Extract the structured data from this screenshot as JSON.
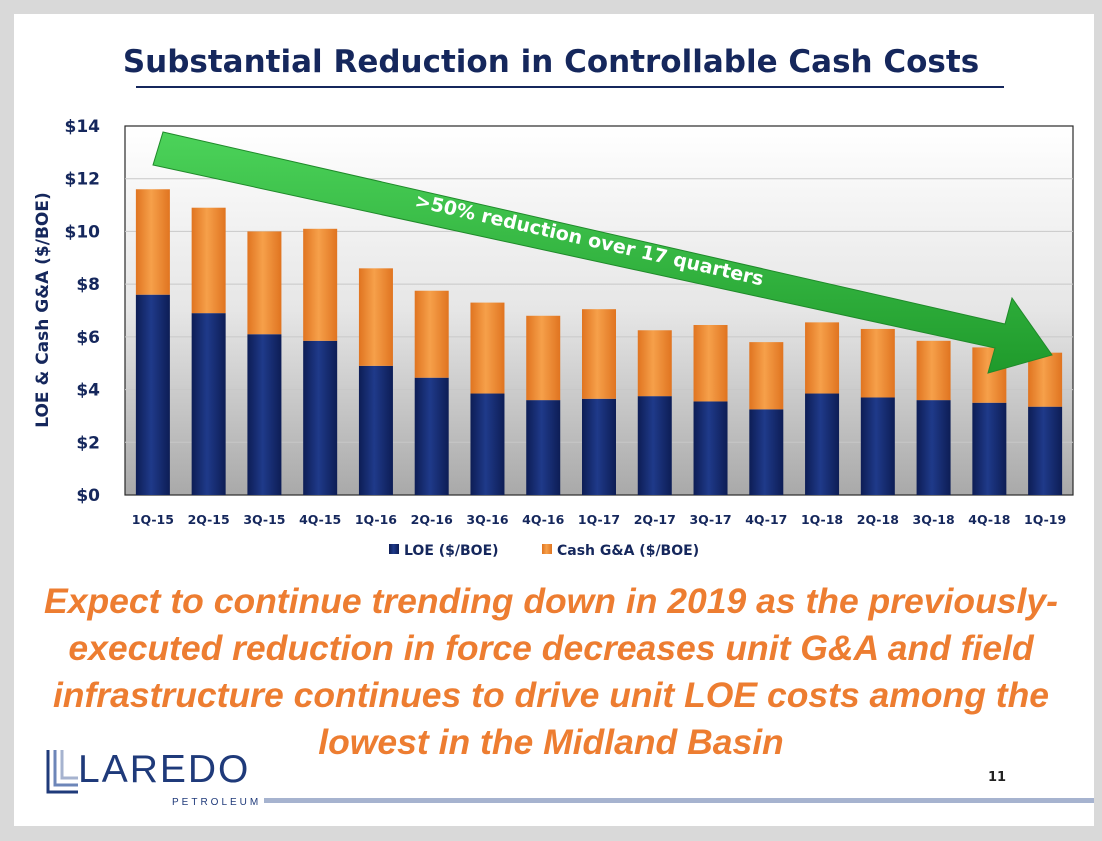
{
  "slide": {
    "title": "Substantial Reduction in Controllable Cash Costs",
    "caption_lines": [
      "Expect to continue trending down in 2019 as the previously-",
      "executed reduction in force decreases unit G&A and field",
      "infrastructure continues to drive unit LOE costs among the",
      "lowest in the Midland Basin"
    ],
    "page_number": "11",
    "logo": {
      "wordmark": "LAREDO",
      "sub": "PETROLEUM"
    }
  },
  "colors": {
    "loe": "#15296b",
    "ga": "#f08a2e",
    "arrow": "#2bbb3a",
    "text": "#15275c",
    "caption": "#ed7d31"
  },
  "chart_data": {
    "type": "bar",
    "stacked": true,
    "title": "",
    "xlabel": "",
    "ylabel": "LOE & Cash G&A ($/BOE)",
    "ylim": [
      0,
      14
    ],
    "yticks": [
      0,
      2,
      4,
      6,
      8,
      10,
      12,
      14
    ],
    "ytick_labels": [
      "$0",
      "$2",
      "$4",
      "$6",
      "$8",
      "$10",
      "$12",
      "$14"
    ],
    "categories": [
      "1Q-15",
      "2Q-15",
      "3Q-15",
      "4Q-15",
      "1Q-16",
      "2Q-16",
      "3Q-16",
      "4Q-16",
      "1Q-17",
      "2Q-17",
      "3Q-17",
      "4Q-17",
      "1Q-18",
      "2Q-18",
      "3Q-18",
      "4Q-18",
      "1Q-19"
    ],
    "series": [
      {
        "name": "LOE ($/BOE)",
        "values": [
          7.6,
          6.9,
          6.1,
          5.85,
          4.9,
          4.45,
          3.85,
          3.6,
          3.65,
          3.75,
          3.55,
          3.25,
          3.85,
          3.7,
          3.6,
          3.5,
          3.35
        ]
      },
      {
        "name": "Cash G&A ($/BOE)",
        "values": [
          4.0,
          4.0,
          3.9,
          4.25,
          3.7,
          3.3,
          3.45,
          3.2,
          3.4,
          2.5,
          2.9,
          2.55,
          2.7,
          2.6,
          2.25,
          2.1,
          2.05
        ]
      }
    ],
    "legend": [
      "LOE ($/BOE)",
      "Cash G&A ($/BOE)"
    ],
    "legend_position": "bottom",
    "annotation": ">50% reduction over 17 quarters"
  }
}
